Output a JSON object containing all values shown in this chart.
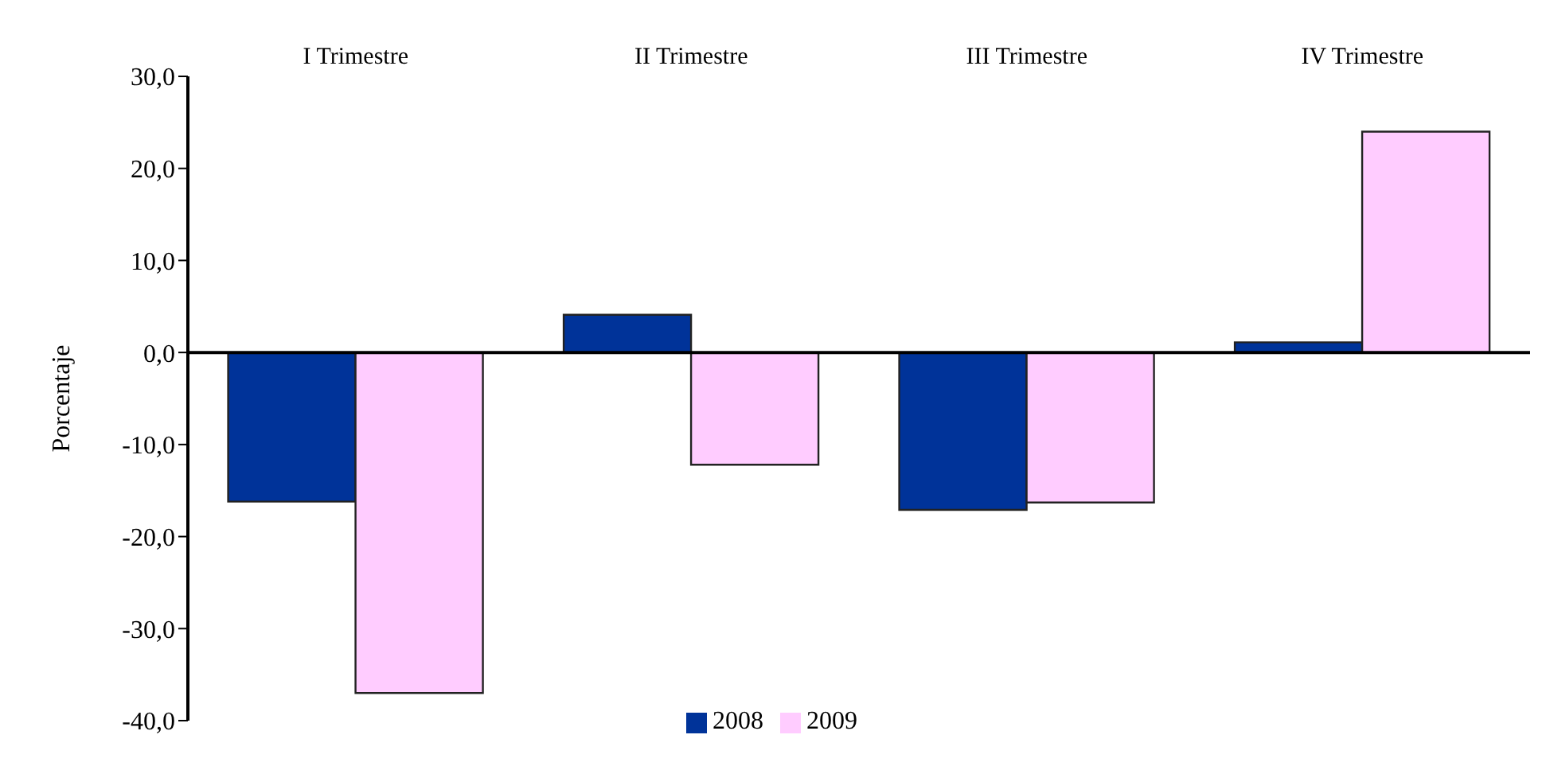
{
  "chart_data": {
    "type": "bar",
    "ylabel": "Porcentaje",
    "categories": [
      "I Trimestre",
      "II Trimestre",
      "III Trimestre",
      "IV Trimestre"
    ],
    "series": [
      {
        "name": "2008",
        "color": "#003399",
        "values": [
          -16.2,
          4.1,
          -17.1,
          1.1
        ]
      },
      {
        "name": "2009",
        "color": "#ffccff",
        "values": [
          -37.0,
          -12.2,
          -16.3,
          24.0
        ]
      }
    ],
    "ylim": [
      -40,
      30
    ],
    "yticks": [
      {
        "value": -40,
        "label": "-40,0"
      },
      {
        "value": -30,
        "label": "-30,0"
      },
      {
        "value": -20,
        "label": "-20,0"
      },
      {
        "value": -10,
        "label": "-10,0"
      },
      {
        "value": 0,
        "label": "0,0"
      },
      {
        "value": 10,
        "label": "10,0"
      },
      {
        "value": 20,
        "label": "20,0"
      },
      {
        "value": 30,
        "label": "30,0"
      }
    ],
    "legend": "bottom"
  }
}
